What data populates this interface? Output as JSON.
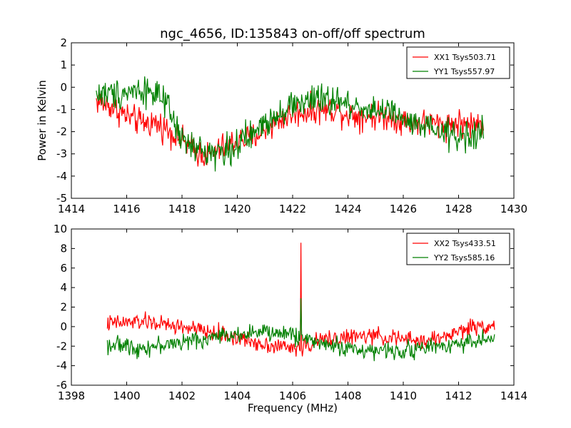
{
  "title": "ngc_4656, ID:135843 on-off/off spectrum",
  "chart_data": [
    {
      "type": "line",
      "title": "ngc_4656, ID:135843 on-off/off spectrum",
      "xlabel": "",
      "ylabel": "Power in Kelvin",
      "xlim": [
        1414,
        1430
      ],
      "ylim": [
        -5,
        2
      ],
      "xticks": [
        1414,
        1416,
        1418,
        1420,
        1422,
        1424,
        1426,
        1428,
        1430
      ],
      "yticks": [
        -5,
        -4,
        -3,
        -2,
        -1,
        0,
        1,
        2
      ],
      "x_range": [
        1414.9,
        1428.9
      ],
      "legend_position": "top-right",
      "grid": false,
      "series": [
        {
          "name": "XX1 Tsys503.71",
          "color": "#ff0000",
          "x": [
            1414.9,
            1415.5,
            1416.0,
            1416.5,
            1417.0,
            1417.5,
            1418.0,
            1418.5,
            1419.0,
            1419.5,
            1420.0,
            1420.5,
            1421.0,
            1421.5,
            1422.0,
            1422.5,
            1423.0,
            1423.5,
            1424.0,
            1424.5,
            1425.0,
            1425.5,
            1426.0,
            1426.5,
            1427.0,
            1427.5,
            1428.0,
            1428.5,
            1428.9
          ],
          "values": [
            -0.6,
            -0.9,
            -1.3,
            -1.6,
            -1.6,
            -1.9,
            -2.4,
            -2.9,
            -3.1,
            -2.7,
            -2.4,
            -2.3,
            -1.9,
            -1.5,
            -1.2,
            -1.1,
            -1.0,
            -1.0,
            -1.2,
            -1.3,
            -1.3,
            -1.3,
            -1.5,
            -1.6,
            -1.6,
            -1.7,
            -1.6,
            -1.7,
            -1.6
          ],
          "noise": 0.55
        },
        {
          "name": "YY1 Tsys557.97",
          "color": "#008000",
          "x": [
            1414.9,
            1415.5,
            1416.0,
            1416.5,
            1417.0,
            1417.5,
            1418.0,
            1418.5,
            1419.0,
            1419.5,
            1420.0,
            1420.5,
            1421.0,
            1421.5,
            1422.0,
            1422.5,
            1423.0,
            1423.5,
            1424.0,
            1424.5,
            1425.0,
            1425.5,
            1426.0,
            1426.5,
            1427.0,
            1427.5,
            1428.0,
            1428.5,
            1428.9
          ],
          "values": [
            -0.3,
            -0.3,
            -0.2,
            -0.1,
            -0.2,
            -1.0,
            -2.4,
            -2.8,
            -2.9,
            -2.9,
            -2.6,
            -2.2,
            -1.6,
            -1.1,
            -0.8,
            -0.6,
            -0.6,
            -0.6,
            -0.8,
            -0.9,
            -1.0,
            -1.1,
            -1.5,
            -1.8,
            -1.9,
            -2.1,
            -2.2,
            -2.2,
            -2.0
          ],
          "noise": 0.6
        }
      ]
    },
    {
      "type": "line",
      "title": "",
      "xlabel": "Frequency (MHz)",
      "ylabel": "",
      "xlim": [
        1398,
        1414
      ],
      "ylim": [
        -6,
        10
      ],
      "xticks": [
        1398,
        1400,
        1402,
        1404,
        1406,
        1408,
        1410,
        1412,
        1414
      ],
      "yticks": [
        -6,
        -4,
        -2,
        0,
        2,
        4,
        6,
        8,
        10
      ],
      "x_range": [
        1399.3,
        1413.3
      ],
      "legend_position": "top-right",
      "grid": false,
      "series": [
        {
          "name": "XX2 Tsys433.51",
          "color": "#ff0000",
          "x": [
            1399.3,
            1400.0,
            1400.5,
            1401.0,
            1401.5,
            1402.0,
            1402.5,
            1403.0,
            1403.5,
            1404.0,
            1404.5,
            1405.0,
            1405.5,
            1406.0,
            1406.5,
            1407.0,
            1407.5,
            1408.0,
            1408.5,
            1409.0,
            1409.5,
            1410.0,
            1410.5,
            1411.0,
            1411.5,
            1412.0,
            1412.5,
            1413.0,
            1413.3
          ],
          "values": [
            0.3,
            0.4,
            0.5,
            0.4,
            0.1,
            0.0,
            -0.3,
            -0.6,
            -0.8,
            -1.2,
            -1.5,
            -1.8,
            -2.0,
            -2.2,
            -2.0,
            -1.4,
            -1.2,
            -1.1,
            -1.0,
            -1.0,
            -1.1,
            -1.3,
            -1.5,
            -1.4,
            -1.0,
            -0.5,
            0.0,
            0.1,
            0.1
          ],
          "noise": 0.75,
          "spike": {
            "x": 1406.3,
            "y": 8.6
          }
        },
        {
          "name": "YY2 Tsys585.16",
          "color": "#008000",
          "x": [
            1399.3,
            1400.0,
            1400.5,
            1401.0,
            1401.5,
            1402.0,
            1402.5,
            1403.0,
            1403.5,
            1404.0,
            1404.5,
            1405.0,
            1405.5,
            1406.0,
            1406.5,
            1407.0,
            1407.5,
            1408.0,
            1408.5,
            1409.0,
            1409.5,
            1410.0,
            1410.5,
            1411.0,
            1411.5,
            1412.0,
            1412.5,
            1413.0,
            1413.3
          ],
          "values": [
            -1.8,
            -2.0,
            -2.2,
            -2.0,
            -1.8,
            -1.6,
            -1.4,
            -1.2,
            -0.9,
            -0.7,
            -0.6,
            -0.6,
            -0.7,
            -0.8,
            -1.3,
            -1.6,
            -2.0,
            -2.2,
            -2.4,
            -2.5,
            -2.5,
            -2.4,
            -2.3,
            -2.1,
            -1.9,
            -1.7,
            -1.5,
            -1.3,
            -1.3
          ],
          "noise": 0.75,
          "spike": {
            "x": 1406.3,
            "y": 2.9
          }
        }
      ]
    }
  ]
}
